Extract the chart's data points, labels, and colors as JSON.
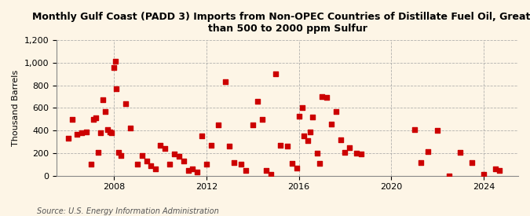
{
  "title": "Monthly Gulf Coast (PADD 3) Imports from Non-OPEC Countries of Distillate Fuel Oil, Greater\nthan 500 to 2000 ppm Sulfur",
  "ylabel": "Thousand Barrels",
  "source": "Source: U.S. Energy Information Administration",
  "background_color": "#fdf5e6",
  "marker_color": "#cc0000",
  "ylim": [
    0,
    1200
  ],
  "yticks": [
    0,
    200,
    400,
    600,
    800,
    1000,
    1200
  ],
  "ytick_labels": [
    "0",
    "200",
    "400",
    "600",
    "800",
    "1,000",
    "1,200"
  ],
  "xlim_start": 2005.5,
  "xlim_end": 2025.5,
  "xticks": [
    2008,
    2012,
    2016,
    2020,
    2024
  ],
  "data_x": [
    2006.0,
    2006.2,
    2006.4,
    2006.6,
    2006.8,
    2007.0,
    2007.1,
    2007.2,
    2007.3,
    2007.4,
    2007.5,
    2007.6,
    2007.7,
    2007.8,
    2007.9,
    2008.0,
    2008.05,
    2008.1,
    2008.2,
    2008.3,
    2008.5,
    2008.7,
    2009.0,
    2009.2,
    2009.4,
    2009.6,
    2009.8,
    2010.0,
    2010.2,
    2010.4,
    2010.6,
    2010.8,
    2011.0,
    2011.2,
    2011.4,
    2011.6,
    2011.8,
    2012.0,
    2012.2,
    2012.5,
    2012.8,
    2013.0,
    2013.2,
    2013.5,
    2013.7,
    2014.0,
    2014.2,
    2014.4,
    2014.6,
    2014.8,
    2015.0,
    2015.2,
    2015.5,
    2015.7,
    2015.9,
    2016.0,
    2016.15,
    2016.2,
    2016.4,
    2016.5,
    2016.6,
    2016.8,
    2016.9,
    2017.0,
    2017.2,
    2017.4,
    2017.6,
    2017.8,
    2018.0,
    2018.2,
    2018.5,
    2018.7,
    2021.0,
    2021.3,
    2021.6,
    2022.0,
    2022.5,
    2023.0,
    2023.5,
    2024.0,
    2024.5,
    2024.7
  ],
  "data_y": [
    330,
    500,
    370,
    380,
    390,
    100,
    500,
    510,
    210,
    380,
    670,
    570,
    410,
    390,
    380,
    960,
    1010,
    770,
    210,
    180,
    640,
    420,
    100,
    180,
    130,
    90,
    60,
    270,
    240,
    100,
    190,
    170,
    130,
    50,
    60,
    30,
    350,
    100,
    270,
    450,
    830,
    260,
    120,
    100,
    50,
    450,
    660,
    500,
    50,
    10,
    900,
    270,
    260,
    110,
    70,
    530,
    600,
    350,
    310,
    390,
    520,
    200,
    110,
    700,
    690,
    460,
    570,
    320,
    210,
    250,
    200,
    190,
    410,
    115,
    215,
    400,
    0,
    210,
    115,
    10,
    60,
    50
  ]
}
